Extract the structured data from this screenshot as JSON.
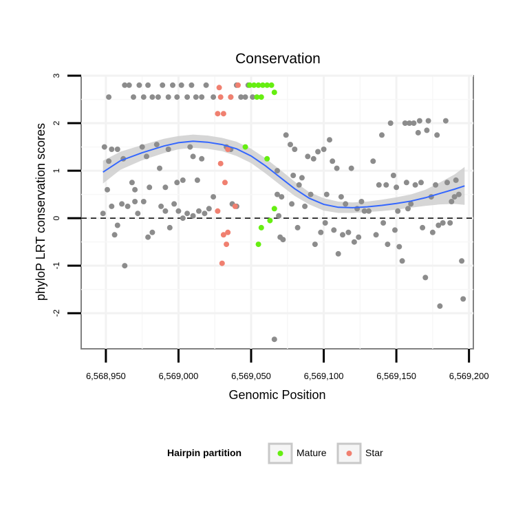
{
  "chart_data": {
    "type": "scatter",
    "title": "Conservation",
    "xlabel": "Genomic Position",
    "ylabel": "phyloP LRT conservation scores",
    "xlim": [
      6568933,
      6569203
    ],
    "ylim": [
      -2.75,
      3.0
    ],
    "x_ticks": [
      6568950,
      6569000,
      6569050,
      6569100,
      6569150,
      6569200
    ],
    "x_tick_labels": [
      "6,568,950",
      "6,569,000",
      "6,569,050",
      "6,569,100",
      "6,569,150",
      "6,569,200"
    ],
    "y_ticks": [
      -2,
      -1,
      0,
      1,
      2,
      3
    ],
    "y_tick_labels": [
      "-2",
      "-1",
      "0",
      "1",
      "2",
      "3"
    ],
    "reference_line": {
      "y": 0,
      "style": "dashed"
    },
    "legend": {
      "title": "Hairpin partition",
      "position": "bottom",
      "entries": [
        {
          "label": "Mature",
          "color": "#66ee11"
        },
        {
          "label": "Star",
          "color": "#f08070"
        }
      ]
    },
    "colors": {
      "other": "#8c8c8c",
      "Mature": "#66ee11",
      "Star": "#f08070",
      "smooth": "#3366ff",
      "ribbon": "#cfcfcf"
    },
    "smooth": {
      "x": [
        6568948,
        6568960,
        6568975,
        6568990,
        6569000,
        6569010,
        6569020,
        6569030,
        6569040,
        6569050,
        6569060,
        6569070,
        6569080,
        6569090,
        6569100,
        6569110,
        6569120,
        6569130,
        6569140,
        6569150,
        6569160,
        6569170,
        6569180,
        6569190,
        6569197
      ],
      "y": [
        0.97,
        1.21,
        1.38,
        1.52,
        1.59,
        1.62,
        1.6,
        1.55,
        1.46,
        1.31,
        1.1,
        0.86,
        0.62,
        0.42,
        0.29,
        0.23,
        0.22,
        0.24,
        0.27,
        0.31,
        0.36,
        0.43,
        0.52,
        0.61,
        0.68
      ],
      "lower": [
        0.73,
        1.02,
        1.22,
        1.37,
        1.45,
        1.48,
        1.46,
        1.41,
        1.31,
        1.16,
        0.94,
        0.7,
        0.47,
        0.29,
        0.16,
        0.11,
        0.11,
        0.13,
        0.15,
        0.18,
        0.22,
        0.26,
        0.29,
        0.3,
        0.28
      ],
      "upper": [
        1.21,
        1.4,
        1.54,
        1.67,
        1.73,
        1.76,
        1.74,
        1.69,
        1.61,
        1.46,
        1.26,
        1.02,
        0.77,
        0.55,
        0.42,
        0.35,
        0.33,
        0.35,
        0.39,
        0.44,
        0.5,
        0.6,
        0.75,
        0.92,
        1.08
      ]
    },
    "series": [
      {
        "name": "Other",
        "points": [
          [
            6568952,
            2.55
          ],
          [
            6568963,
            2.8
          ],
          [
            6568966,
            2.8
          ],
          [
            6568969,
            2.55
          ],
          [
            6568973,
            2.8
          ],
          [
            6568976,
            2.55
          ],
          [
            6568979,
            2.8
          ],
          [
            6568982,
            2.55
          ],
          [
            6568986,
            2.55
          ],
          [
            6568989,
            2.8
          ],
          [
            6568993,
            2.55
          ],
          [
            6568996,
            2.8
          ],
          [
            6568999,
            2.55
          ],
          [
            6569002,
            2.8
          ],
          [
            6569006,
            2.55
          ],
          [
            6569009,
            2.8
          ],
          [
            6569012,
            2.55
          ],
          [
            6569016,
            2.55
          ],
          [
            6569019,
            2.8
          ],
          [
            6569024,
            2.55
          ],
          [
            6569036,
            2.55
          ],
          [
            6569040,
            2.8
          ],
          [
            6569043,
            2.55
          ],
          [
            6569046,
            2.55
          ],
          [
            6569048,
            2.8
          ],
          [
            6569051,
            2.55
          ],
          [
            6568949,
            1.5
          ],
          [
            6568952,
            1.2
          ],
          [
            6568954,
            1.45
          ],
          [
            6568958,
            1.45
          ],
          [
            6568962,
            1.25
          ],
          [
            6568968,
            0.75
          ],
          [
            6568970,
            0.6
          ],
          [
            6568975,
            1.5
          ],
          [
            6568978,
            1.3
          ],
          [
            6568980,
            0.65
          ],
          [
            6568985,
            1.55
          ],
          [
            6568987,
            1.05
          ],
          [
            6568991,
            0.65
          ],
          [
            6568993,
            1.45
          ],
          [
            6568999,
            0.75
          ],
          [
            6569003,
            0.8
          ],
          [
            6569008,
            1.5
          ],
          [
            6569010,
            1.3
          ],
          [
            6569013,
            0.8
          ],
          [
            6569016,
            1.25
          ],
          [
            6569024,
            0.45
          ],
          [
            6569033,
            1.5
          ],
          [
            6569036,
            1.45
          ],
          [
            6568948,
            0.1
          ],
          [
            6568951,
            0.6
          ],
          [
            6568954,
            0.25
          ],
          [
            6568956,
            -0.35
          ],
          [
            6568958,
            -0.15
          ],
          [
            6568961,
            0.3
          ],
          [
            6568963,
            -1.0
          ],
          [
            6568965,
            0.25
          ],
          [
            6568970,
            0.35
          ],
          [
            6568972,
            0.1
          ],
          [
            6568976,
            0.35
          ],
          [
            6568979,
            -0.4
          ],
          [
            6568982,
            -0.3
          ],
          [
            6568988,
            0.25
          ],
          [
            6568991,
            0.15
          ],
          [
            6568994,
            -0.2
          ],
          [
            6568997,
            0.3
          ],
          [
            6569000,
            0.15
          ],
          [
            6569003,
            0.0
          ],
          [
            6569006,
            0.1
          ],
          [
            6569010,
            0.05
          ],
          [
            6569014,
            0.15
          ],
          [
            6569018,
            0.1
          ],
          [
            6569021,
            0.2
          ],
          [
            6569037,
            0.3
          ],
          [
            6569040,
            0.25
          ],
          [
            6569066,
            -2.55
          ],
          [
            6569068,
            1.0
          ],
          [
            6569068,
            0.5
          ],
          [
            6569069,
            0.05
          ],
          [
            6569070,
            -0.4
          ],
          [
            6569071,
            0.45
          ],
          [
            6569072,
            -0.45
          ],
          [
            6569074,
            1.75
          ],
          [
            6569077,
            1.55
          ],
          [
            6569078,
            0.3
          ],
          [
            6569079,
            0.9
          ],
          [
            6569080,
            1.45
          ],
          [
            6569082,
            -0.2
          ],
          [
            6569083,
            0.7
          ],
          [
            6569085,
            0.85
          ],
          [
            6569087,
            0.25
          ],
          [
            6569089,
            1.3
          ],
          [
            6569091,
            0.5
          ],
          [
            6569093,
            1.25
          ],
          [
            6569094,
            -0.55
          ],
          [
            6569096,
            1.4
          ],
          [
            6569098,
            -0.3
          ],
          [
            6569100,
            1.45
          ],
          [
            6569101,
            -0.1
          ],
          [
            6569102,
            0.5
          ],
          [
            6569104,
            1.65
          ],
          [
            6569106,
            1.2
          ],
          [
            6569107,
            -0.25
          ],
          [
            6569109,
            1.05
          ],
          [
            6569110,
            -0.75
          ],
          [
            6569112,
            0.45
          ],
          [
            6569113,
            -0.35
          ],
          [
            6569115,
            0.3
          ],
          [
            6569117,
            -0.3
          ],
          [
            6569119,
            1.05
          ],
          [
            6569121,
            -0.5
          ],
          [
            6569123,
            0.2
          ],
          [
            6569124,
            -0.4
          ],
          [
            6569126,
            0.35
          ],
          [
            6569128,
            0.15
          ],
          [
            6569131,
            0.15
          ],
          [
            6569134,
            1.2
          ],
          [
            6569136,
            -0.35
          ],
          [
            6569138,
            0.7
          ],
          [
            6569140,
            1.75
          ],
          [
            6569141,
            -0.1
          ],
          [
            6569143,
            0.7
          ],
          [
            6569144,
            -0.55
          ],
          [
            6569146,
            2.0
          ],
          [
            6569148,
            0.9
          ],
          [
            6569149,
            -0.25
          ],
          [
            6569150,
            0.65
          ],
          [
            6569151,
            0.15
          ],
          [
            6569152,
            -0.6
          ],
          [
            6569154,
            -0.9
          ],
          [
            6569156,
            2.0
          ],
          [
            6569157,
            0.75
          ],
          [
            6569158,
            0.2
          ],
          [
            6569159,
            2.0
          ],
          [
            6569160,
            0.3
          ],
          [
            6569162,
            2.0
          ],
          [
            6569163,
            0.7
          ],
          [
            6569165,
            1.8
          ],
          [
            6569166,
            2.05
          ],
          [
            6569167,
            0.75
          ],
          [
            6569168,
            -0.2
          ],
          [
            6569170,
            -1.25
          ],
          [
            6569171,
            1.85
          ],
          [
            6569172,
            2.05
          ],
          [
            6569174,
            0.45
          ],
          [
            6569175,
            -0.3
          ],
          [
            6569177,
            0.7
          ],
          [
            6569178,
            1.75
          ],
          [
            6569179,
            -0.15
          ],
          [
            6569180,
            -1.85
          ],
          [
            6569182,
            -0.1
          ],
          [
            6569184,
            2.05
          ],
          [
            6569185,
            0.75
          ],
          [
            6569187,
            -0.1
          ],
          [
            6569188,
            0.35
          ],
          [
            6569190,
            0.45
          ],
          [
            6569191,
            0.8
          ],
          [
            6569193,
            0.5
          ],
          [
            6569195,
            -0.9
          ],
          [
            6569196,
            -1.7
          ]
        ]
      },
      {
        "name": "Mature",
        "points": [
          [
            6569049,
            2.8
          ],
          [
            6569052,
            2.8
          ],
          [
            6569055,
            2.8
          ],
          [
            6569058,
            2.8
          ],
          [
            6569061,
            2.8
          ],
          [
            6569064,
            2.8
          ],
          [
            6569066,
            2.65
          ],
          [
            6569054,
            2.55
          ],
          [
            6569057,
            2.55
          ],
          [
            6569046,
            1.5
          ],
          [
            6569061,
            1.25
          ],
          [
            6569066,
            0.2
          ],
          [
            6569063,
            -0.05
          ],
          [
            6569057,
            -0.2
          ],
          [
            6569055,
            -0.55
          ]
        ]
      },
      {
        "name": "Star",
        "points": [
          [
            6569028,
            2.75
          ],
          [
            6569029,
            2.55
          ],
          [
            6569041,
            2.8
          ],
          [
            6569036,
            2.55
          ],
          [
            6569027,
            2.2
          ],
          [
            6569031,
            2.2
          ],
          [
            6569034,
            1.45
          ],
          [
            6569029,
            1.15
          ],
          [
            6569032,
            0.75
          ],
          [
            6569027,
            0.15
          ],
          [
            6569039,
            0.25
          ],
          [
            6569031,
            -0.35
          ],
          [
            6569034,
            -0.3
          ],
          [
            6569033,
            -0.55
          ],
          [
            6569030,
            -0.95
          ]
        ]
      }
    ]
  }
}
